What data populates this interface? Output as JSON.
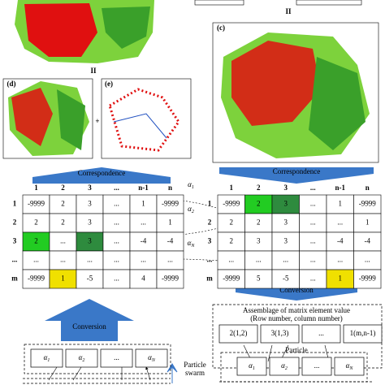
{
  "labels": {
    "c": "(c)",
    "d": "(d)",
    "e": "(e)",
    "plus": "+",
    "eq_top": "II",
    "eq_mid": "II",
    "correspondence_left": "Correspondence",
    "correspondence_right": "Correspondence",
    "conversion_right": "Conversion",
    "conversion_left": "Conversion",
    "assemblage_line1": "Assemblage of matrix element value",
    "assemblage_line2": "(Row number, column number)",
    "particle": "Particle",
    "particle_swarm_1": "Particle",
    "particle_swarm_2": "swarm"
  },
  "alphas": [
    {
      "base": "α",
      "sub": "1"
    },
    {
      "base": "α",
      "sub": "2"
    },
    {
      "base": "α",
      "sub": "N"
    }
  ],
  "left_matrix": {
    "columns": [
      "1",
      "2",
      "3",
      "...",
      "n-1",
      "n"
    ],
    "rows": [
      "1",
      "2",
      "3",
      "...",
      "m"
    ],
    "cells": [
      [
        "-9999",
        "2",
        "3",
        "...",
        "1",
        "-9999"
      ],
      [
        "2",
        "2",
        "3",
        "...",
        "...",
        "1"
      ],
      [
        "2",
        "...",
        "3",
        "...",
        "-4",
        "-4"
      ],
      [
        "...",
        "...",
        "...",
        "...",
        "...",
        "..."
      ],
      [
        "-9999",
        "1",
        "-5",
        "...",
        "4",
        "-9999"
      ]
    ]
  },
  "right_matrix": {
    "columns": [
      "1",
      "2",
      "3",
      "...",
      "n-1",
      "n"
    ],
    "rows": [
      "1",
      "2",
      "3",
      "...",
      "m"
    ],
    "cells": [
      [
        "-9999",
        "2",
        "3",
        "...",
        "1",
        "-9999"
      ],
      [
        "2",
        "2",
        "3",
        "...",
        "...",
        "1"
      ],
      [
        "2",
        "3",
        "3",
        "...",
        "-4",
        "-4"
      ],
      [
        "...",
        "...",
        "...",
        "...",
        "...",
        "..."
      ],
      [
        "-9999",
        "5",
        "-5",
        "...",
        "1",
        "-9999"
      ]
    ]
  },
  "assemblage": [
    "2(1,2)",
    "3(1,3)",
    "...",
    "1(m,n-1)"
  ],
  "particle": [
    {
      "base": "α",
      "sub": "1"
    },
    {
      "base": "α",
      "sub": "2"
    },
    {
      "text": "..."
    },
    {
      "base": "α",
      "sub": "N"
    }
  ],
  "swarm": [
    {
      "base": "α",
      "sub": "1"
    },
    {
      "base": "α",
      "sub": "2"
    },
    {
      "text": "..."
    },
    {
      "base": "α",
      "sub": "N"
    }
  ]
}
